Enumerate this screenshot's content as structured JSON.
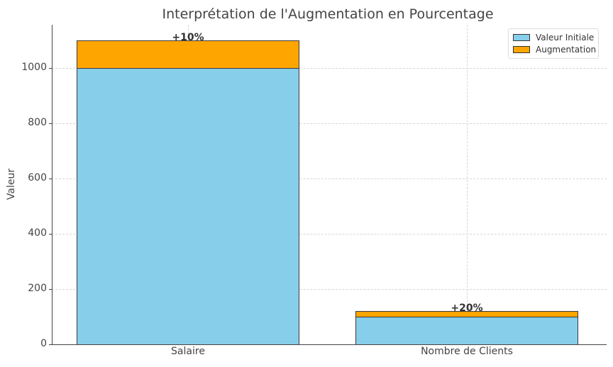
{
  "chart_data": {
    "type": "bar",
    "stacked": true,
    "title": "Interprétation de l'Augmentation en Pourcentage",
    "xlabel": "",
    "ylabel": "Valeur",
    "categories": [
      "Salaire",
      "Nombre de Clients"
    ],
    "series": [
      {
        "name": "Valeur Initiale",
        "values": [
          1000,
          100
        ],
        "color": "#87ceeb"
      },
      {
        "name": "Augmentation",
        "values": [
          100,
          20
        ],
        "color": "#ffa500"
      }
    ],
    "annotations": [
      "+10%",
      "+20%"
    ],
    "ylim": [
      0,
      1155
    ],
    "yticks": [
      0,
      200,
      400,
      600,
      800,
      1000
    ],
    "grid": true,
    "legend_position": "upper right"
  },
  "ui": {
    "title": "Interprétation de l'Augmentation en Pourcentage",
    "ylabel": "Valeur",
    "yticks": [
      "0",
      "200",
      "400",
      "600",
      "800",
      "1000"
    ],
    "xticks": [
      "Salaire",
      "Nombre de Clients"
    ],
    "annotations": [
      "+10%",
      "+20%"
    ],
    "legend": [
      "Valeur Initiale",
      "Augmentation"
    ]
  }
}
